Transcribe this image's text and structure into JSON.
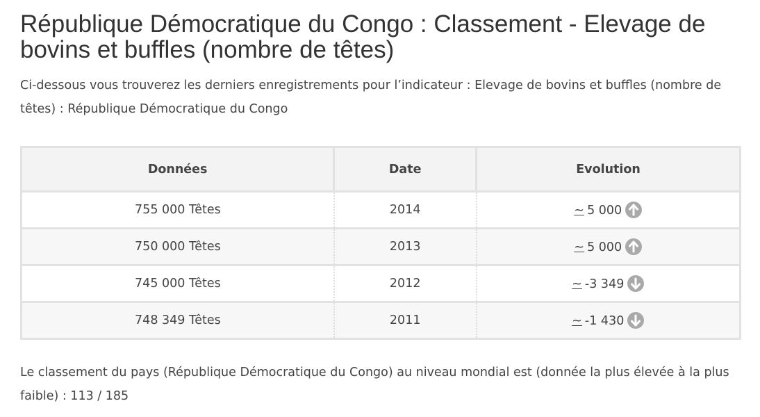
{
  "title": "République Démocratique du Congo : Classement - Elevage de bovins et buffles (nombre de têtes)",
  "intro": "Ci-dessous vous trouverez les derniers enregistrements pour l’indicateur : Elevage de bovins et buffles (nombre de têtes) : République Démocratique du Congo",
  "table": {
    "headers": {
      "data": "Données",
      "date": "Date",
      "evolution": "Evolution"
    },
    "rows": [
      {
        "value": "755 000 Têtes",
        "date": "2014",
        "approx": "~",
        "evolution": "5 000",
        "direction": "up"
      },
      {
        "value": "750 000 Têtes",
        "date": "2013",
        "approx": "~",
        "evolution": "5 000",
        "direction": "up"
      },
      {
        "value": "745 000 Têtes",
        "date": "2012",
        "approx": "~",
        "evolution": "-3 349",
        "direction": "down"
      },
      {
        "value": "748 349 Têtes",
        "date": "2011",
        "approx": "~",
        "evolution": "-1 430",
        "direction": "down"
      }
    ]
  },
  "footer": "Le classement du pays (République Démocratique du Congo) au niveau mondial est (donnée la plus élevée à la plus faible) : 113 / 185",
  "colors": {
    "arrow_icon": "#a9a9a9",
    "header_bg": "#f3f3f3",
    "border": "#e2e2e2"
  }
}
